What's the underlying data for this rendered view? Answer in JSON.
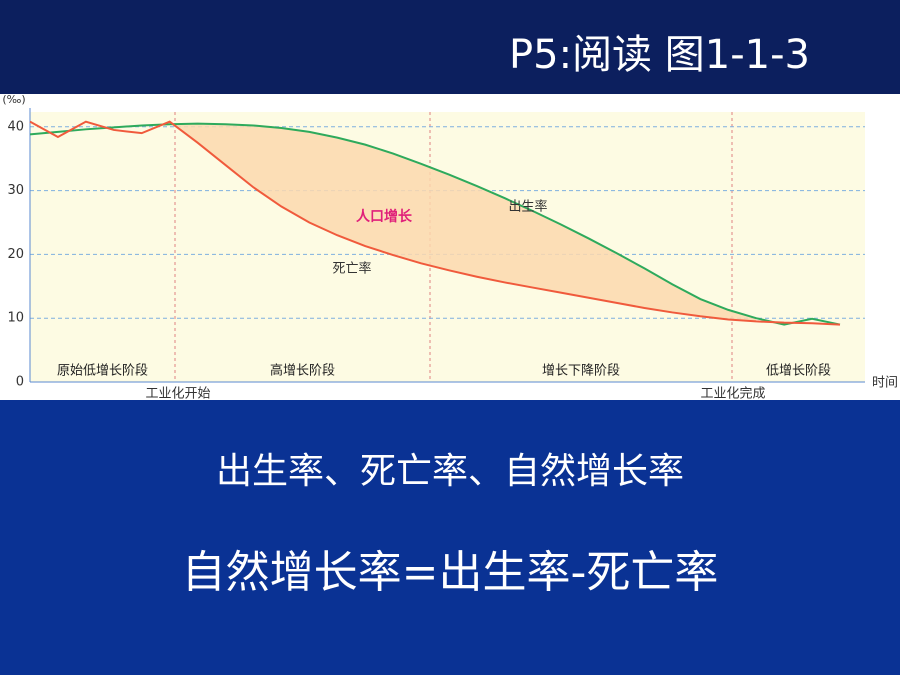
{
  "slide_title": "P5:阅读 图1-1-3",
  "chart_data": {
    "type": "line",
    "y_label": "(‰)",
    "x_label": "时间",
    "categories": [
      null,
      null,
      null,
      null,
      null,
      null,
      null,
      null,
      null,
      null,
      null,
      null,
      null,
      null,
      null,
      null,
      null,
      null,
      null,
      null,
      null,
      null,
      null,
      null,
      null,
      null,
      null,
      null,
      null,
      null
    ],
    "series": [
      {
        "name": "出生率",
        "color": "#2eaa5c",
        "values": [
          38.8,
          39.2,
          39.6,
          39.9,
          40.2,
          40.4,
          40.5,
          40.4,
          40.2,
          39.8,
          39.2,
          38.3,
          37.2,
          35.8,
          34.2,
          32.5,
          30.7,
          28.8,
          26.8,
          24.7,
          22.5,
          20.2,
          17.8,
          15.3,
          13.0,
          11.3,
          10.0,
          9.0,
          9.9,
          9.0
        ]
      },
      {
        "name": "死亡率",
        "color": "#f05a3c",
        "values": [
          40.8,
          38.4,
          40.8,
          39.5,
          39.0,
          40.8,
          37.5,
          34.0,
          30.5,
          27.5,
          25.0,
          23.0,
          21.3,
          19.9,
          18.6,
          17.5,
          16.5,
          15.6,
          14.8,
          14.0,
          13.2,
          12.4,
          11.6,
          10.9,
          10.3,
          9.8,
          9.5,
          9.3,
          9.2,
          9.0
        ]
      }
    ],
    "area_label": "人口增长",
    "ylim": [
      0,
      42
    ],
    "yticks": [
      0,
      10,
      20,
      30,
      40
    ],
    "grid": true,
    "stages": [
      "原始低增长阶段",
      "高增长阶段",
      "增长下降阶段",
      "低增长阶段"
    ],
    "annotations": [
      "工业化开始",
      "工业化完成"
    ]
  },
  "body": [
    "出生率、死亡率、自然增长率",
    "自然增长率=出生率-死亡率"
  ]
}
